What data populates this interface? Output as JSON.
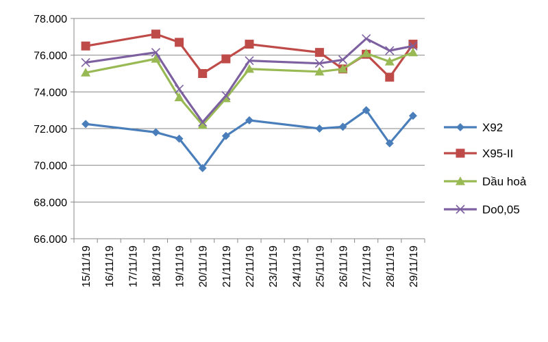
{
  "chart_data": {
    "type": "line",
    "title": "",
    "xlabel": "",
    "ylabel": "",
    "ylim": [
      66000,
      78000
    ],
    "ytick_step": 2000,
    "yticks": [
      "66.000",
      "68.000",
      "70.000",
      "72.000",
      "74.000",
      "76.000",
      "78.000"
    ],
    "grid": "horizontal",
    "legend_position": "right",
    "categories": [
      "15/11/19",
      "16/11/19",
      "17/11/19",
      "18/11/19",
      "19/11/19",
      "20/11/19",
      "21/11/19",
      "22/11/19",
      "23/11/19",
      "24/11/19",
      "25/11/19",
      "26/11/19",
      "27/11/19",
      "28/11/19",
      "29/11/19"
    ],
    "series": [
      {
        "name": "X92",
        "color": "#4a7ebb",
        "marker": "diamond",
        "values": [
          72250,
          null,
          null,
          71800,
          71450,
          69850,
          71600,
          72450,
          null,
          null,
          72000,
          72100,
          73000,
          71200,
          72700
        ]
      },
      {
        "name": "X95-II",
        "color": "#be4b48",
        "marker": "square",
        "values": [
          76500,
          null,
          null,
          77150,
          76700,
          75000,
          75800,
          76600,
          null,
          null,
          76150,
          75250,
          76050,
          74800,
          76600
        ]
      },
      {
        "name": "Dầu hoả",
        "color": "#98b954",
        "marker": "triangle",
        "values": [
          75050,
          null,
          null,
          75800,
          73700,
          72200,
          73650,
          75250,
          null,
          null,
          75100,
          75250,
          76100,
          75650,
          76150
        ]
      },
      {
        "name": "Do0,05",
        "color": "#7d60a0",
        "marker": "cross",
        "values": [
          75600,
          null,
          null,
          76150,
          74150,
          72350,
          73800,
          75700,
          null,
          null,
          75550,
          75750,
          76900,
          76250,
          76500
        ]
      }
    ]
  }
}
